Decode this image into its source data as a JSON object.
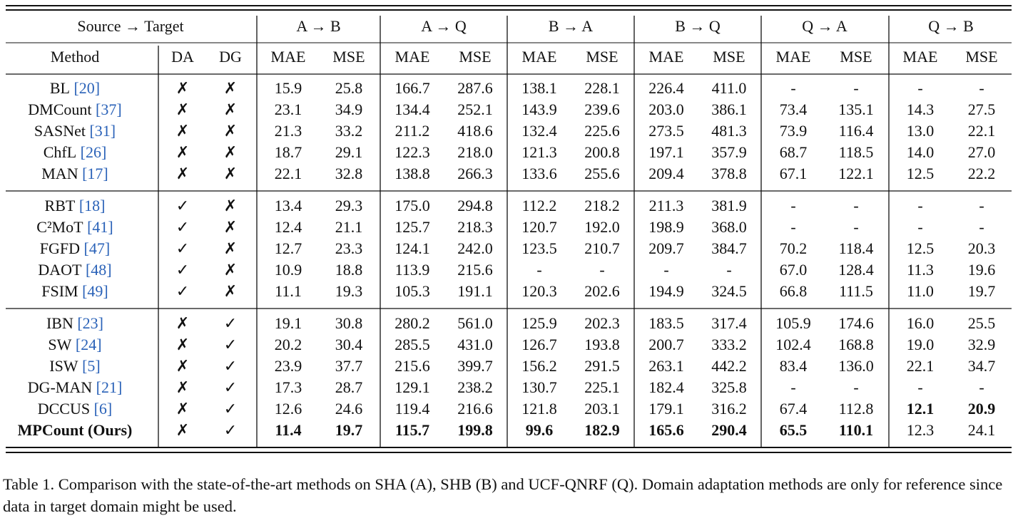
{
  "table": {
    "header": {
      "span_label": "Source → Target",
      "pairs": [
        "A → B",
        "A → Q",
        "B → A",
        "B → Q",
        "Q → A",
        "Q → B"
      ],
      "columns": [
        "Method",
        "DA",
        "DG"
      ],
      "metrics": [
        "MAE",
        "MSE"
      ]
    },
    "groups": [
      [
        {
          "method": "BL",
          "cite": "[20]",
          "da": "✗",
          "dg": "✗",
          "values": [
            "15.9",
            "25.8",
            "166.7",
            "287.6",
            "138.1",
            "228.1",
            "226.4",
            "411.0",
            "-",
            "-",
            "-",
            "-"
          ]
        },
        {
          "method": "DMCount",
          "cite": "[37]",
          "da": "✗",
          "dg": "✗",
          "values": [
            "23.1",
            "34.9",
            "134.4",
            "252.1",
            "143.9",
            "239.6",
            "203.0",
            "386.1",
            "73.4",
            "135.1",
            "14.3",
            "27.5"
          ]
        },
        {
          "method": "SASNet",
          "cite": "[31]",
          "da": "✗",
          "dg": "✗",
          "values": [
            "21.3",
            "33.2",
            "211.2",
            "418.6",
            "132.4",
            "225.6",
            "273.5",
            "481.3",
            "73.9",
            "116.4",
            "13.0",
            "22.1"
          ]
        },
        {
          "method": "ChfL",
          "cite": "[26]",
          "da": "✗",
          "dg": "✗",
          "values": [
            "18.7",
            "29.1",
            "122.3",
            "218.0",
            "121.3",
            "200.8",
            "197.1",
            "357.9",
            "68.7",
            "118.5",
            "14.0",
            "27.0"
          ]
        },
        {
          "method": "MAN",
          "cite": "[17]",
          "da": "✗",
          "dg": "✗",
          "values": [
            "22.1",
            "32.8",
            "138.8",
            "266.3",
            "133.6",
            "255.6",
            "209.4",
            "378.8",
            "67.1",
            "122.1",
            "12.5",
            "22.2"
          ]
        }
      ],
      [
        {
          "method": "RBT",
          "cite": "[18]",
          "da": "✓",
          "dg": "✗",
          "values": [
            "13.4",
            "29.3",
            "175.0",
            "294.8",
            "112.2",
            "218.2",
            "211.3",
            "381.9",
            "-",
            "-",
            "-",
            "-"
          ]
        },
        {
          "method": "C²MoT",
          "cite": "[41]",
          "da": "✓",
          "dg": "✗",
          "values": [
            "12.4",
            "21.1",
            "125.7",
            "218.3",
            "120.7",
            "192.0",
            "198.9",
            "368.0",
            "-",
            "-",
            "-",
            "-"
          ]
        },
        {
          "method": "FGFD",
          "cite": "[47]",
          "da": "✓",
          "dg": "✗",
          "values": [
            "12.7",
            "23.3",
            "124.1",
            "242.0",
            "123.5",
            "210.7",
            "209.7",
            "384.7",
            "70.2",
            "118.4",
            "12.5",
            "20.3"
          ]
        },
        {
          "method": "DAOT",
          "cite": "[48]",
          "da": "✓",
          "dg": "✗",
          "values": [
            "10.9",
            "18.8",
            "113.9",
            "215.6",
            "-",
            "-",
            "-",
            "-",
            "67.0",
            "128.4",
            "11.3",
            "19.6"
          ]
        },
        {
          "method": "FSIM",
          "cite": "[49]",
          "da": "✓",
          "dg": "✗",
          "values": [
            "11.1",
            "19.3",
            "105.3",
            "191.1",
            "120.3",
            "202.6",
            "194.9",
            "324.5",
            "66.8",
            "111.5",
            "11.0",
            "19.7"
          ]
        }
      ],
      [
        {
          "method": "IBN",
          "cite": "[23]",
          "da": "✗",
          "dg": "✓",
          "values": [
            "19.1",
            "30.8",
            "280.2",
            "561.0",
            "125.9",
            "202.3",
            "183.5",
            "317.4",
            "105.9",
            "174.6",
            "16.0",
            "25.5"
          ]
        },
        {
          "method": "SW",
          "cite": "[24]",
          "da": "✗",
          "dg": "✓",
          "values": [
            "20.2",
            "30.4",
            "285.5",
            "431.0",
            "126.7",
            "193.8",
            "200.7",
            "333.2",
            "102.4",
            "168.8",
            "19.0",
            "32.9"
          ]
        },
        {
          "method": "ISW",
          "cite": "[5]",
          "da": "✗",
          "dg": "✓",
          "values": [
            "23.9",
            "37.7",
            "215.6",
            "399.7",
            "156.2",
            "291.5",
            "263.1",
            "442.2",
            "83.4",
            "136.0",
            "22.1",
            "34.7"
          ]
        },
        {
          "method": "DG-MAN",
          "cite": "[21]",
          "da": "✗",
          "dg": "✓",
          "values": [
            "17.3",
            "28.7",
            "129.1",
            "238.2",
            "130.7",
            "225.1",
            "182.4",
            "325.8",
            "-",
            "-",
            "-",
            "-"
          ]
        },
        {
          "method": "DCCUS",
          "cite": "[6]",
          "da": "✗",
          "dg": "✓",
          "values": [
            "12.6",
            "24.6",
            "119.4",
            "216.6",
            "121.8",
            "203.1",
            "179.1",
            "316.2",
            "67.4",
            "112.8",
            "12.1",
            "20.9"
          ],
          "bold": [
            false,
            false,
            false,
            false,
            false,
            false,
            false,
            false,
            false,
            false,
            true,
            true
          ]
        },
        {
          "method": "MPCount (Ours)",
          "da": "✗",
          "dg": "✓",
          "values": [
            "11.4",
            "19.7",
            "115.7",
            "199.8",
            "99.6",
            "182.9",
            "165.6",
            "290.4",
            "65.5",
            "110.1",
            "12.3",
            "24.1"
          ],
          "bold": [
            true,
            true,
            true,
            true,
            true,
            true,
            true,
            true,
            true,
            true,
            false,
            false
          ],
          "bold_name": true
        }
      ]
    ],
    "caption": "Table 1. Comparison with the state-of-the-art methods on SHA (A), SHB (B) and UCF-QNRF (Q). Domain adaptation methods are only for reference since data in target domain might be used."
  }
}
